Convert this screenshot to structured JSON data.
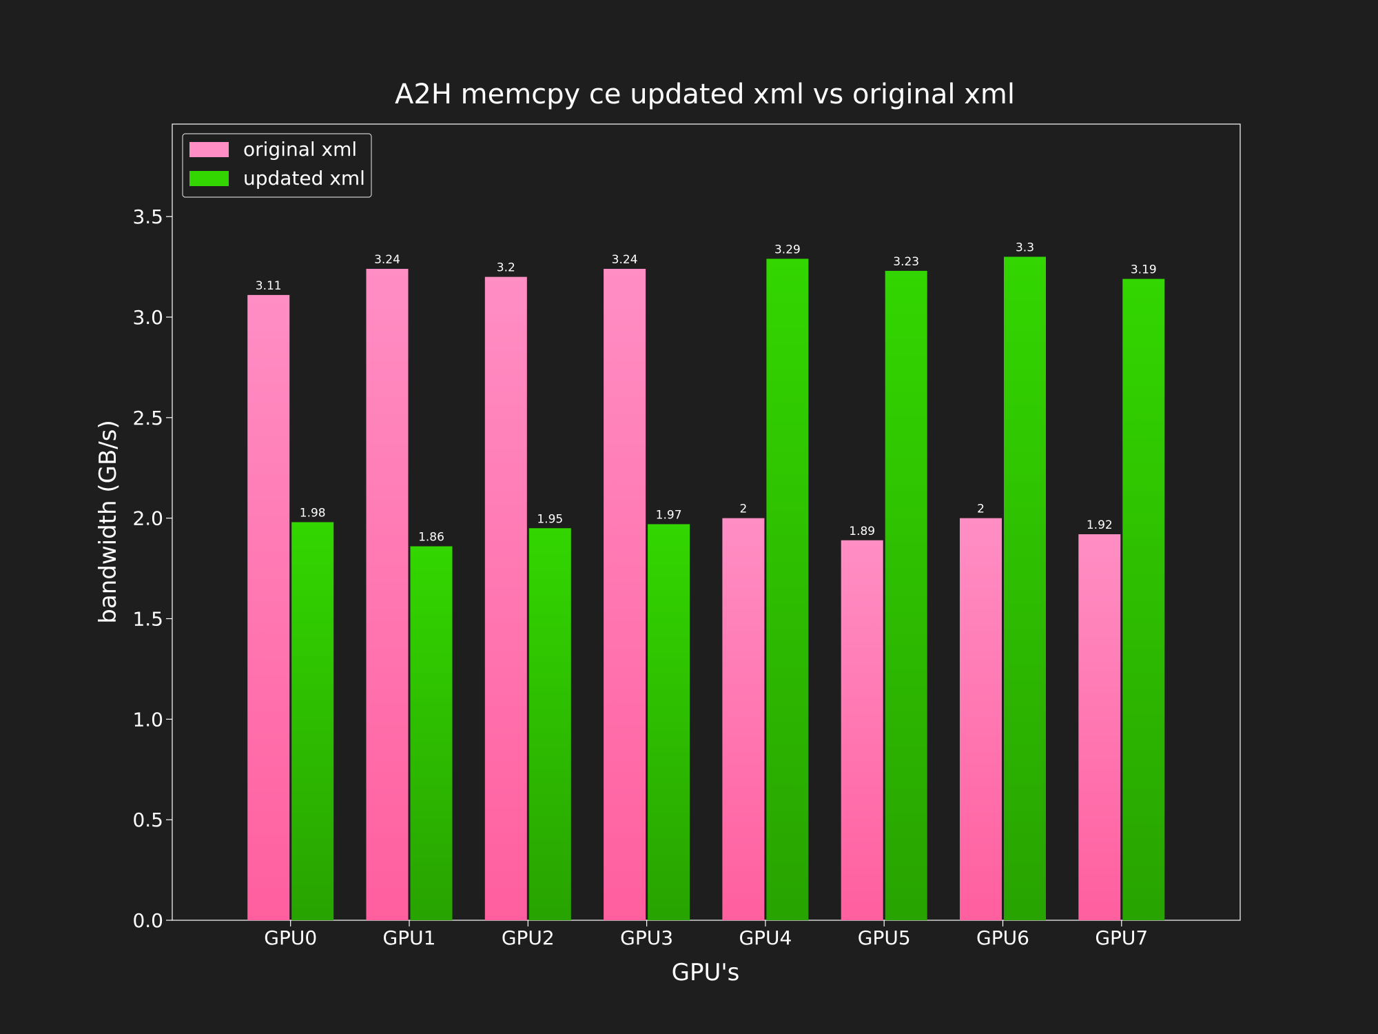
{
  "chart_data": {
    "type": "bar",
    "title": "A2H memcpy ce updated xml vs original xml",
    "xlabel": "GPU's",
    "ylabel": "bandwidth (GB/s)",
    "categories": [
      "GPU0",
      "GPU1",
      "GPU2",
      "GPU3",
      "GPU4",
      "GPU5",
      "GPU6",
      "GPU7"
    ],
    "series": [
      {
        "name": "original xml",
        "values": [
          3.11,
          3.24,
          3.2,
          3.24,
          2,
          1.89,
          2,
          1.92
        ],
        "labels": [
          "3.11",
          "3.24",
          "3.2",
          "3.24",
          "2",
          "1.89",
          "2",
          "1.92"
        ],
        "color_top": "#ff8ec4",
        "color_bottom": "#ff5f9e"
      },
      {
        "name": "updated xml",
        "values": [
          1.98,
          1.86,
          1.95,
          1.97,
          3.29,
          3.23,
          3.3,
          3.19
        ],
        "labels": [
          "1.98",
          "1.86",
          "1.95",
          "1.97",
          "3.29",
          "3.23",
          "3.3",
          "3.19"
        ],
        "color_top": "#33d600",
        "color_bottom": "#28a300"
      }
    ],
    "ylim": [
      0,
      3.96
    ],
    "yticks": [
      0.0,
      0.5,
      1.0,
      1.5,
      2.0,
      2.5,
      3.0,
      3.5
    ],
    "ytick_labels": [
      "0.0",
      "0.5",
      "1.0",
      "1.5",
      "2.0",
      "2.5",
      "3.0",
      "3.5"
    ],
    "grid": false,
    "legend_position": "top-left",
    "background": "#1e1e1e",
    "text_color": "#ffffff"
  }
}
